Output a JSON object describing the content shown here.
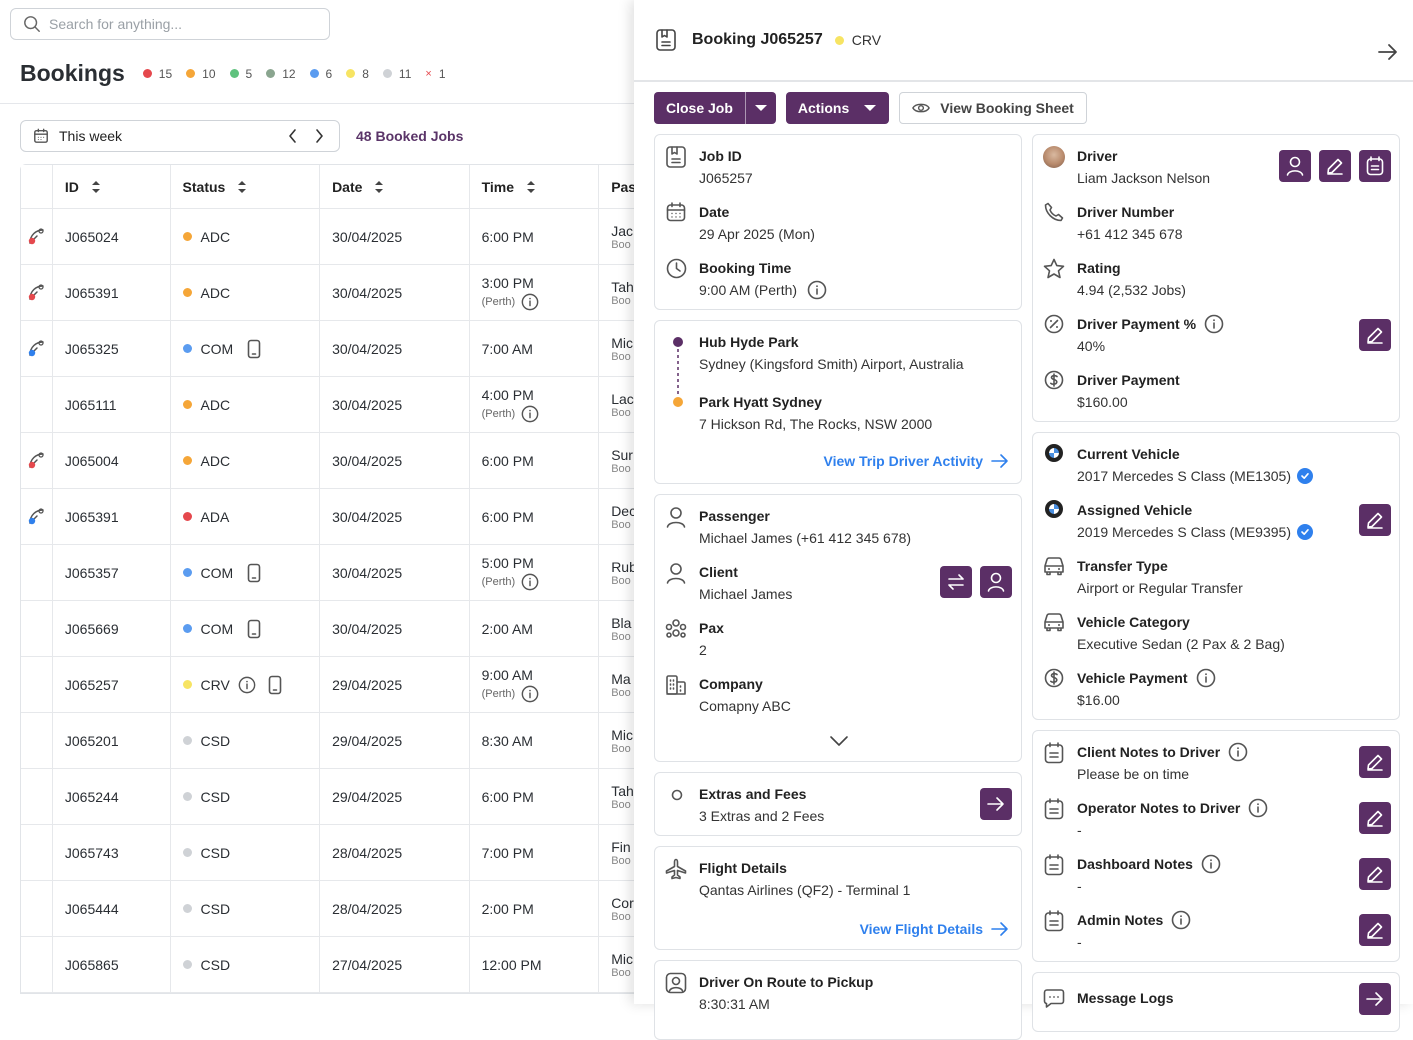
{
  "search": {
    "placeholder": "Search for anything..."
  },
  "page": {
    "title": "Bookings",
    "stats": [
      {
        "color": "#e5484d",
        "count": "15"
      },
      {
        "color": "#f5a638",
        "count": "10"
      },
      {
        "color": "#5fc27e",
        "count": "5"
      },
      {
        "color": "#8aa58f",
        "count": "12"
      },
      {
        "color": "#5b9cf0",
        "count": "6"
      },
      {
        "color": "#f7e463",
        "count": "8"
      },
      {
        "color": "#cfd2d6",
        "count": "11"
      }
    ],
    "stat_x": {
      "symbol": "×",
      "count": "1"
    }
  },
  "week": {
    "label": "This week"
  },
  "booked_jobs": "48 Booked Jobs",
  "table": {
    "headers": {
      "id": "ID",
      "status": "Status",
      "date": "Date",
      "time": "Time",
      "passenger": "Pas"
    },
    "rows": [
      {
        "flag": "red",
        "id": "J065024",
        "status": "ADC",
        "status_color": "#f5a638",
        "date": "30/04/2025",
        "time": "6:00 PM",
        "time_sub": "",
        "device": false,
        "info": false,
        "pas": "Jac",
        "pas_sub": "Boo"
      },
      {
        "flag": "red",
        "id": "J065391",
        "status": "ADC",
        "status_color": "#f5a638",
        "date": "30/04/2025",
        "time": "3:00 PM",
        "time_sub": "(Perth)",
        "device": false,
        "info": false,
        "pas": "Tah",
        "pas_sub": "Boo"
      },
      {
        "flag": "blue",
        "id": "J065325",
        "status": "COM",
        "status_color": "#5b9cf0",
        "date": "30/04/2025",
        "time": "7:00 AM",
        "time_sub": "",
        "device": true,
        "info": false,
        "pas": "Mic",
        "pas_sub": "Boo"
      },
      {
        "flag": "",
        "id": "J065111",
        "status": "ADC",
        "status_color": "#f5a638",
        "date": "30/04/2025",
        "time": "4:00 PM",
        "time_sub": "(Perth)",
        "device": false,
        "info": false,
        "pas": "Lac",
        "pas_sub": "Boo"
      },
      {
        "flag": "red",
        "id": "J065004",
        "status": "ADC",
        "status_color": "#f5a638",
        "date": "30/04/2025",
        "time": "6:00 PM",
        "time_sub": "",
        "device": false,
        "info": false,
        "pas": "Sur",
        "pas_sub": "Boo"
      },
      {
        "flag": "blue",
        "id": "J065391",
        "status": "ADA",
        "status_color": "#e5484d",
        "date": "30/04/2025",
        "time": "6:00 PM",
        "time_sub": "",
        "device": false,
        "info": false,
        "pas": "Dec",
        "pas_sub": "Boo"
      },
      {
        "flag": "",
        "id": "J065357",
        "status": "COM",
        "status_color": "#5b9cf0",
        "date": "30/04/2025",
        "time": "5:00 PM",
        "time_sub": "(Perth)",
        "device": true,
        "info": false,
        "pas": "Rub",
        "pas_sub": "Boo"
      },
      {
        "flag": "",
        "id": "J065669",
        "status": "COM",
        "status_color": "#5b9cf0",
        "date": "30/04/2025",
        "time": "2:00 AM",
        "time_sub": "",
        "device": true,
        "info": false,
        "pas": "Bla",
        "pas_sub": "Boo"
      },
      {
        "flag": "",
        "id": "J065257",
        "status": "CRV",
        "status_color": "#f7e463",
        "date": "29/04/2025",
        "time": "9:00 AM",
        "time_sub": "(Perth)",
        "device": true,
        "info": true,
        "pas": "Ma",
        "pas_sub": "Boo"
      },
      {
        "flag": "",
        "id": "J065201",
        "status": "CSD",
        "status_color": "#cfd2d6",
        "date": "29/04/2025",
        "time": "8:30 AM",
        "time_sub": "",
        "device": false,
        "info": false,
        "pas": "Mic",
        "pas_sub": "Boo"
      },
      {
        "flag": "",
        "id": "J065244",
        "status": "CSD",
        "status_color": "#cfd2d6",
        "date": "29/04/2025",
        "time": "6:00 PM",
        "time_sub": "",
        "device": false,
        "info": false,
        "pas": "Tah",
        "pas_sub": "Boo"
      },
      {
        "flag": "",
        "id": "J065743",
        "status": "CSD",
        "status_color": "#cfd2d6",
        "date": "28/04/2025",
        "time": "7:00 PM",
        "time_sub": "",
        "device": false,
        "info": false,
        "pas": "Fin",
        "pas_sub": "Boo"
      },
      {
        "flag": "",
        "id": "J065444",
        "status": "CSD",
        "status_color": "#cfd2d6",
        "date": "28/04/2025",
        "time": "2:00 PM",
        "time_sub": "",
        "device": false,
        "info": false,
        "pas": "Cor",
        "pas_sub": "Boo"
      },
      {
        "flag": "",
        "id": "J065865",
        "status": "CSD",
        "status_color": "#cfd2d6",
        "date": "27/04/2025",
        "time": "12:00 PM",
        "time_sub": "",
        "device": false,
        "info": false,
        "pas": "Mic",
        "pas_sub": "Boo"
      }
    ]
  },
  "panel": {
    "title": "Booking J065257",
    "status": "CRV",
    "status_color": "#f7e463",
    "buttons": {
      "close_job": "Close Job",
      "actions": "Actions",
      "view_sheet": "View Booking Sheet"
    },
    "job": {
      "job_id_label": "Job ID",
      "job_id": "J065257",
      "date_label": "Date",
      "date": "29 Apr 2025 (Mon)",
      "time_label": "Booking Time",
      "time": "9:00 AM (Perth)"
    },
    "route": {
      "pickup_name": "Hub Hyde Park",
      "pickup_addr": "Sydney (Kingsford Smith) Airport, Australia",
      "drop_name": "Park Hyatt Sydney",
      "drop_addr": "7 Hickson Rd, The Rocks, NSW 2000",
      "link": "View Trip Driver Activity"
    },
    "people": {
      "passenger_label": "Passenger",
      "passenger": "Michael James (+61 412 345 678)",
      "client_label": "Client",
      "client": "Michael James",
      "pax_label": "Pax",
      "pax": "2",
      "company_label": "Company",
      "company": "Comapny ABC"
    },
    "extras": {
      "label": "Extras and Fees",
      "value": "3 Extras and 2 Fees"
    },
    "flight": {
      "label": "Flight Details",
      "value": "Qantas Airlines (QF2) - Terminal 1",
      "link": "View Flight Details"
    },
    "route_status": {
      "label": "Driver On Route to Pickup",
      "value": "8:30:31 AM"
    },
    "driver": {
      "driver_label": "Driver",
      "driver": "Liam Jackson Nelson",
      "number_label": "Driver Number",
      "number": "+61 412 345 678",
      "rating_label": "Rating",
      "rating": "4.94 (2,532 Jobs)",
      "pct_label": "Driver Payment %",
      "pct": "40%",
      "pay_label": "Driver Payment",
      "pay": "$160.00"
    },
    "vehicle": {
      "current_label": "Current Vehicle",
      "current": "2017 Mercedes S Class (ME1305)",
      "assigned_label": "Assigned Vehicle",
      "assigned": "2019 Mercedes S Class (ME9395)",
      "transfer_label": "Transfer Type",
      "transfer": "Airport or Regular Transfer",
      "category_label": "Vehicle Category",
      "category": "Executive Sedan (2 Pax & 2 Bag)",
      "payment_label": "Vehicle Payment",
      "payment": "$16.00"
    },
    "notes": {
      "client_label": "Client Notes to Driver",
      "client": "Please be on time",
      "operator_label": "Operator Notes to Driver",
      "operator": "-",
      "dashboard_label": "Dashboard Notes",
      "dashboard": "-",
      "admin_label": "Admin Notes",
      "admin": "-"
    },
    "message_logs": "Message Logs"
  }
}
